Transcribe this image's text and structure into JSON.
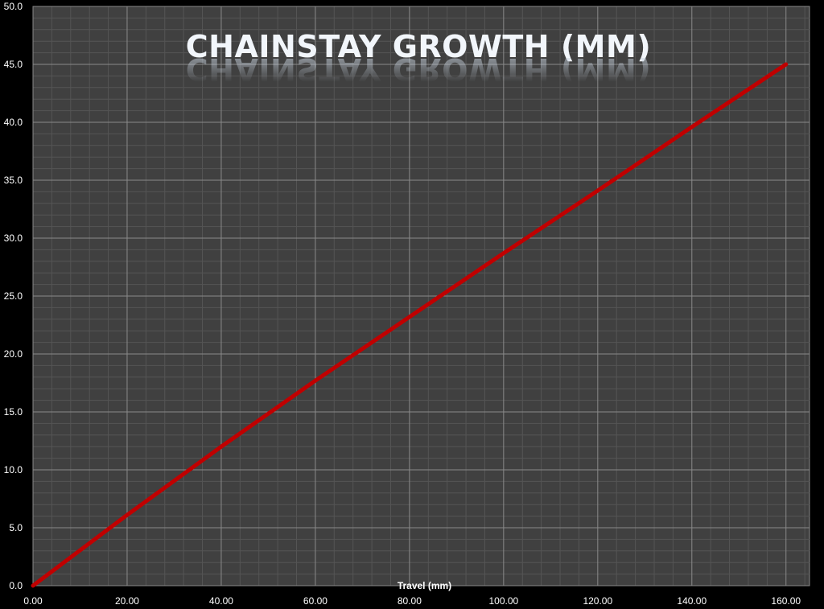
{
  "chart_data": {
    "type": "line",
    "title": "CHAINSTAY  GROWTH (MM)",
    "xlabel": "Travel (mm)",
    "ylabel": "",
    "xlim": [
      0,
      165
    ],
    "ylim": [
      0,
      50
    ],
    "x_ticks": [
      "0.00",
      "20.00",
      "40.00",
      "60.00",
      "80.00",
      "100.00",
      "120.00",
      "140.00",
      "160.00"
    ],
    "y_ticks": [
      "0.0",
      "5.0",
      "10.0",
      "15.0",
      "20.0",
      "25.0",
      "30.0",
      "35.0",
      "40.0",
      "45.0",
      "50.0"
    ],
    "grid": true,
    "series": [
      {
        "color": "#c00000",
        "x": [
          0,
          20,
          40,
          60,
          80,
          100,
          120,
          140,
          160
        ],
        "y": [
          0,
          6.1,
          12.0,
          17.7,
          23.2,
          28.7,
          34.1,
          39.6,
          45.0
        ]
      }
    ],
    "colors": {
      "background": "#000000",
      "plot_area": "#404040",
      "major_grid": "#8a8a8a",
      "minor_grid": "#555555",
      "text": "#ffffff"
    }
  }
}
